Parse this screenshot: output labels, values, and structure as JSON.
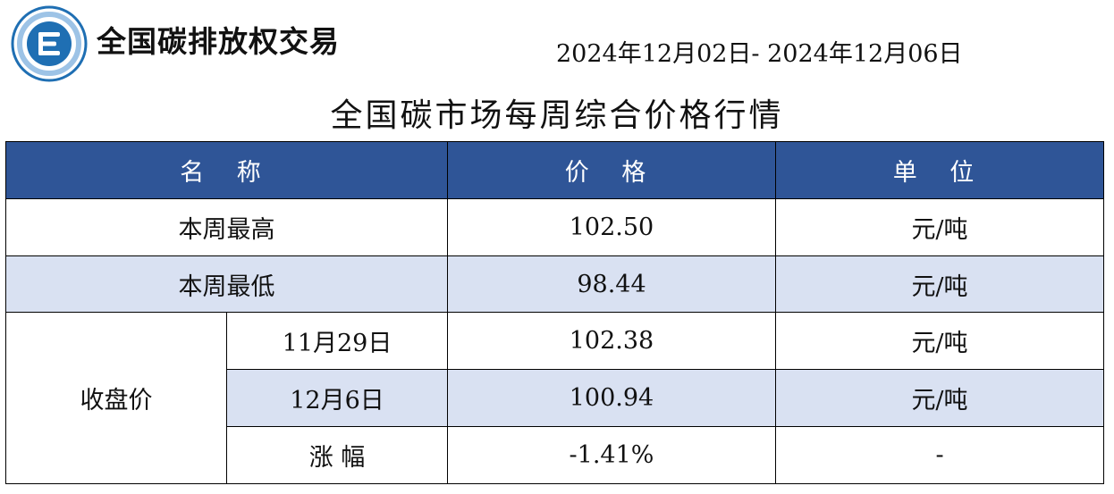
{
  "header": {
    "brand": "全国碳排放权交易",
    "date_range": "2024年12月02日- 2024年12月06日",
    "title": "全国碳市场每周综合价格行情",
    "logo_icon": "e-circle-logo-icon",
    "colors": {
      "header_bg": "#2f5597",
      "row_shade": "#d9e1f2",
      "logo_blue": "#1f6fb3"
    }
  },
  "table": {
    "columns": [
      "名 称",
      "价 格",
      "单 位"
    ],
    "rows": [
      {
        "name": "本周最高",
        "price": "102.50",
        "unit": "元/吨"
      },
      {
        "name": "本周最低",
        "price": "98.44",
        "unit": "元/吨"
      }
    ],
    "closing": {
      "label": "收盘价",
      "rows": [
        {
          "date": "11月29日",
          "price": "102.38",
          "unit": "元/吨"
        },
        {
          "date": "12月6日",
          "price": "100.94",
          "unit": "元/吨"
        },
        {
          "date": "涨 幅",
          "price": "-1.41%",
          "unit": "-"
        }
      ]
    }
  }
}
